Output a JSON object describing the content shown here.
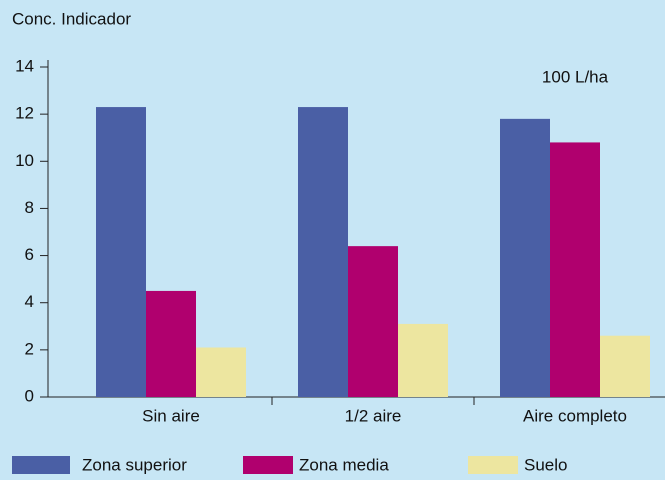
{
  "chart_data": {
    "type": "bar",
    "ylabel": "Conc. Indicador",
    "annotation": "100 L/ha",
    "categories": [
      "Sin aire",
      "1/2 aire",
      "Aire completo"
    ],
    "series": [
      {
        "name": "Zona superior",
        "color": "#4a5fa5",
        "values": [
          12.3,
          12.3,
          11.8
        ]
      },
      {
        "name": "Zona media",
        "color": "#b0006e",
        "values": [
          4.5,
          6.4,
          10.8
        ]
      },
      {
        "name": "Suelo",
        "color": "#ede6a0",
        "values": [
          2.1,
          3.1,
          2.6
        ]
      }
    ],
    "ylim": [
      0,
      14
    ],
    "yticks": [
      0,
      2,
      4,
      6,
      8,
      10,
      12,
      14
    ],
    "legend": "bottom"
  }
}
